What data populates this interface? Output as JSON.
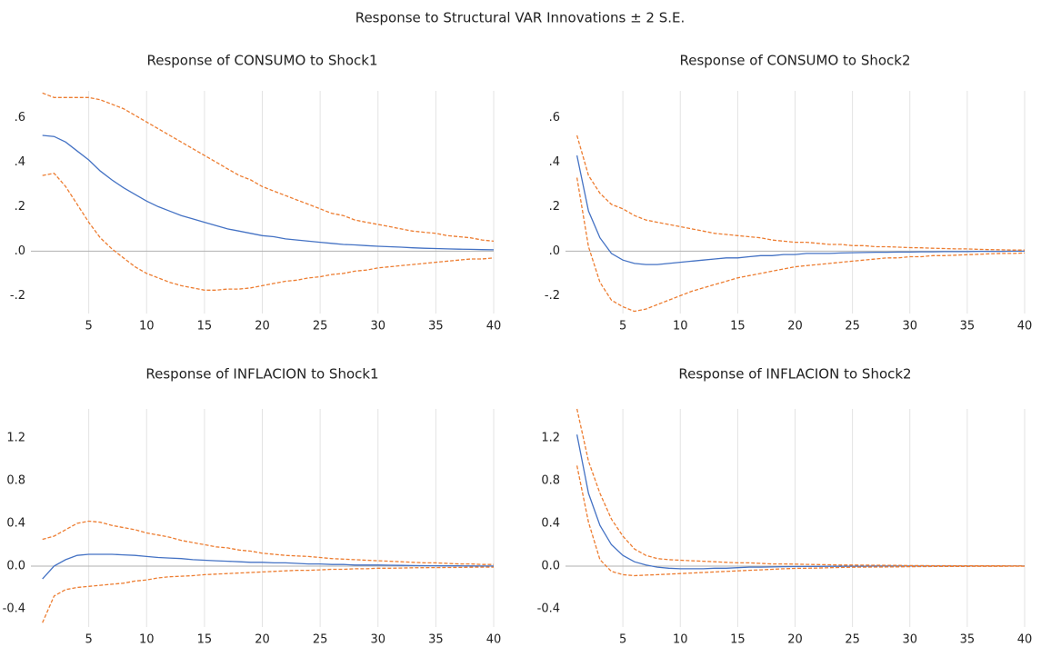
{
  "title": "Response to Structural VAR Innovations ± 2 S.E.",
  "chart_data": [
    {
      "type": "line",
      "title": "Response of CONSUMO to Shock1",
      "x": [
        1,
        2,
        3,
        4,
        5,
        6,
        7,
        8,
        9,
        10,
        11,
        12,
        13,
        14,
        15,
        16,
        17,
        18,
        19,
        20,
        21,
        22,
        23,
        24,
        25,
        26,
        27,
        28,
        29,
        30,
        31,
        32,
        33,
        34,
        35,
        36,
        37,
        38,
        39,
        40
      ],
      "xlim": [
        0,
        40
      ],
      "xticks": [
        5,
        10,
        15,
        20,
        25,
        30,
        35,
        40
      ],
      "ylim": [
        -0.28,
        0.72
      ],
      "yticks": [
        {
          "value": -0.2,
          "label": "-.2"
        },
        {
          "value": 0,
          "label": ".0"
        },
        {
          "value": 0.2,
          "label": ".2"
        },
        {
          "value": 0.4,
          "label": ".4"
        },
        {
          "value": 0.6,
          "label": ".6"
        }
      ],
      "grid": "x",
      "zero_line": true,
      "series": [
        {
          "color": "#4472c4",
          "dash": false,
          "values": [
            0.52,
            0.515,
            0.49,
            0.45,
            0.41,
            0.36,
            0.32,
            0.285,
            0.255,
            0.225,
            0.2,
            0.18,
            0.16,
            0.145,
            0.13,
            0.115,
            0.1,
            0.09,
            0.08,
            0.07,
            0.065,
            0.055,
            0.05,
            0.045,
            0.04,
            0.035,
            0.03,
            0.028,
            0.025,
            0.022,
            0.02,
            0.018,
            0.015,
            0.013,
            0.012,
            0.01,
            0.009,
            0.008,
            0.007,
            0.006
          ]
        },
        {
          "color": "#ed7d31",
          "dash": true,
          "values": [
            0.71,
            0.69,
            0.69,
            0.69,
            0.69,
            0.68,
            0.66,
            0.64,
            0.61,
            0.58,
            0.55,
            0.52,
            0.49,
            0.46,
            0.43,
            0.4,
            0.37,
            0.34,
            0.32,
            0.29,
            0.27,
            0.25,
            0.23,
            0.21,
            0.19,
            0.17,
            0.16,
            0.14,
            0.13,
            0.12,
            0.11,
            0.1,
            0.09,
            0.085,
            0.08,
            0.07,
            0.065,
            0.06,
            0.05,
            0.045
          ]
        },
        {
          "color": "#ed7d31",
          "dash": true,
          "values": [
            0.34,
            0.35,
            0.29,
            0.21,
            0.13,
            0.06,
            0.01,
            -0.03,
            -0.07,
            -0.1,
            -0.12,
            -0.14,
            -0.155,
            -0.165,
            -0.175,
            -0.175,
            -0.17,
            -0.17,
            -0.165,
            -0.155,
            -0.145,
            -0.135,
            -0.13,
            -0.12,
            -0.115,
            -0.105,
            -0.1,
            -0.09,
            -0.085,
            -0.075,
            -0.07,
            -0.065,
            -0.06,
            -0.055,
            -0.05,
            -0.045,
            -0.04,
            -0.035,
            -0.035,
            -0.03
          ]
        }
      ]
    },
    {
      "type": "line",
      "title": "Response of CONSUMO to Shock2",
      "x": [
        1,
        2,
        3,
        4,
        5,
        6,
        7,
        8,
        9,
        10,
        11,
        12,
        13,
        14,
        15,
        16,
        17,
        18,
        19,
        20,
        21,
        22,
        23,
        24,
        25,
        26,
        27,
        28,
        29,
        30,
        31,
        32,
        33,
        34,
        35,
        36,
        37,
        38,
        39,
        40
      ],
      "xlim": [
        0,
        40
      ],
      "xticks": [
        5,
        10,
        15,
        20,
        25,
        30,
        35,
        40
      ],
      "ylim": [
        -0.28,
        0.72
      ],
      "yticks": [
        {
          "value": -0.2,
          "label": "-.2"
        },
        {
          "value": 0,
          "label": ".0"
        },
        {
          "value": 0.2,
          "label": ".2"
        },
        {
          "value": 0.4,
          "label": ".4"
        },
        {
          "value": 0.6,
          "label": ".6"
        }
      ],
      "grid": "x",
      "zero_line": true,
      "series": [
        {
          "color": "#4472c4",
          "dash": false,
          "values": [
            0.43,
            0.18,
            0.06,
            -0.01,
            -0.04,
            -0.055,
            -0.06,
            -0.06,
            -0.055,
            -0.05,
            -0.045,
            -0.04,
            -0.035,
            -0.03,
            -0.03,
            -0.025,
            -0.02,
            -0.02,
            -0.015,
            -0.015,
            -0.01,
            -0.01,
            -0.01,
            -0.008,
            -0.007,
            -0.006,
            -0.005,
            -0.005,
            -0.004,
            -0.004,
            -0.003,
            -0.003,
            -0.002,
            -0.002,
            -0.002,
            -0.001,
            -0.001,
            -0.001,
            0,
            0
          ]
        },
        {
          "color": "#ed7d31",
          "dash": true,
          "values": [
            0.52,
            0.34,
            0.26,
            0.21,
            0.19,
            0.16,
            0.14,
            0.13,
            0.12,
            0.11,
            0.1,
            0.09,
            0.08,
            0.075,
            0.07,
            0.065,
            0.06,
            0.05,
            0.045,
            0.04,
            0.04,
            0.035,
            0.03,
            0.03,
            0.025,
            0.025,
            0.02,
            0.02,
            0.018,
            0.016,
            0.015,
            0.013,
            0.012,
            0.01,
            0.01,
            0.008,
            0.007,
            0.006,
            0.005,
            0.005
          ]
        },
        {
          "color": "#ed7d31",
          "dash": true,
          "values": [
            0.33,
            0.02,
            -0.14,
            -0.22,
            -0.25,
            -0.27,
            -0.26,
            -0.24,
            -0.22,
            -0.2,
            -0.18,
            -0.165,
            -0.15,
            -0.135,
            -0.12,
            -0.11,
            -0.1,
            -0.09,
            -0.08,
            -0.07,
            -0.065,
            -0.06,
            -0.055,
            -0.05,
            -0.045,
            -0.04,
            -0.035,
            -0.03,
            -0.03,
            -0.025,
            -0.025,
            -0.02,
            -0.02,
            -0.018,
            -0.016,
            -0.014,
            -0.012,
            -0.01,
            -0.01,
            -0.008
          ]
        }
      ]
    },
    {
      "type": "line",
      "title": "Response of INFLACION to Shock1",
      "x": [
        1,
        2,
        3,
        4,
        5,
        6,
        7,
        8,
        9,
        10,
        11,
        12,
        13,
        14,
        15,
        16,
        17,
        18,
        19,
        20,
        21,
        22,
        23,
        24,
        25,
        26,
        27,
        28,
        29,
        30,
        31,
        32,
        33,
        34,
        35,
        36,
        37,
        38,
        39,
        40
      ],
      "xlim": [
        0,
        40
      ],
      "xticks": [
        5,
        10,
        15,
        20,
        25,
        30,
        35,
        40
      ],
      "ylim": [
        -0.57,
        1.47
      ],
      "yticks": [
        -0.4,
        {
          "value": 0,
          "label": "0.0"
        },
        0.4,
        0.8,
        1.2
      ],
      "grid": "x",
      "zero_line": true,
      "series": [
        {
          "color": "#4472c4",
          "dash": false,
          "values": [
            -0.12,
            0,
            0.06,
            0.1,
            0.11,
            0.11,
            0.11,
            0.105,
            0.1,
            0.09,
            0.08,
            0.075,
            0.07,
            0.06,
            0.055,
            0.05,
            0.045,
            0.04,
            0.035,
            0.035,
            0.03,
            0.03,
            0.025,
            0.02,
            0.02,
            0.015,
            0.015,
            0.01,
            0.01,
            0.01,
            0.008,
            0.006,
            0.005,
            0.004,
            0.003,
            0.002,
            0.002,
            0.001,
            0,
            0
          ]
        },
        {
          "color": "#ed7d31",
          "dash": true,
          "values": [
            0.25,
            0.28,
            0.34,
            0.4,
            0.42,
            0.41,
            0.38,
            0.36,
            0.34,
            0.31,
            0.29,
            0.27,
            0.24,
            0.22,
            0.2,
            0.18,
            0.17,
            0.15,
            0.14,
            0.12,
            0.11,
            0.1,
            0.095,
            0.09,
            0.08,
            0.07,
            0.065,
            0.06,
            0.055,
            0.05,
            0.045,
            0.04,
            0.035,
            0.03,
            0.03,
            0.025,
            0.02,
            0.02,
            0.015,
            0.015
          ]
        },
        {
          "color": "#ed7d31",
          "dash": true,
          "values": [
            -0.53,
            -0.28,
            -0.22,
            -0.2,
            -0.19,
            -0.18,
            -0.17,
            -0.16,
            -0.14,
            -0.13,
            -0.11,
            -0.1,
            -0.095,
            -0.09,
            -0.08,
            -0.075,
            -0.07,
            -0.065,
            -0.06,
            -0.055,
            -0.05,
            -0.045,
            -0.04,
            -0.04,
            -0.035,
            -0.03,
            -0.03,
            -0.025,
            -0.025,
            -0.02,
            -0.02,
            -0.018,
            -0.016,
            -0.015,
            -0.014,
            -0.013,
            -0.012,
            -0.011,
            -0.01,
            -0.01
          ]
        }
      ]
    },
    {
      "type": "line",
      "title": "Response of INFLACION to Shock2",
      "x": [
        1,
        2,
        3,
        4,
        5,
        6,
        7,
        8,
        9,
        10,
        11,
        12,
        13,
        14,
        15,
        16,
        17,
        18,
        19,
        20,
        21,
        22,
        23,
        24,
        25,
        26,
        27,
        28,
        29,
        30,
        31,
        32,
        33,
        34,
        35,
        36,
        37,
        38,
        39,
        40
      ],
      "xlim": [
        0,
        40
      ],
      "xticks": [
        5,
        10,
        15,
        20,
        25,
        30,
        35,
        40
      ],
      "ylim": [
        -0.57,
        1.47
      ],
      "yticks": [
        -0.4,
        {
          "value": 0,
          "label": "0.0"
        },
        0.4,
        0.8,
        1.2
      ],
      "grid": "x",
      "zero_line": true,
      "series": [
        {
          "color": "#4472c4",
          "dash": false,
          "values": [
            1.23,
            0.68,
            0.38,
            0.2,
            0.1,
            0.04,
            0.01,
            -0.01,
            -0.02,
            -0.025,
            -0.025,
            -0.025,
            -0.02,
            -0.02,
            -0.015,
            -0.01,
            -0.01,
            -0.008,
            -0.006,
            -0.005,
            -0.004,
            -0.003,
            -0.002,
            -0.002,
            -0.001,
            -0.001,
            0,
            0,
            0,
            0,
            0,
            0,
            0,
            0,
            0,
            0,
            0,
            0,
            0,
            0
          ]
        },
        {
          "color": "#ed7d31",
          "dash": true,
          "values": [
            1.47,
            0.98,
            0.68,
            0.44,
            0.28,
            0.16,
            0.1,
            0.07,
            0.06,
            0.055,
            0.05,
            0.045,
            0.04,
            0.035,
            0.03,
            0.03,
            0.025,
            0.02,
            0.02,
            0.018,
            0.016,
            0.014,
            0.012,
            0.01,
            0.01,
            0.009,
            0.008,
            0.007,
            0.006,
            0.005,
            0.005,
            0.004,
            0.004,
            0.003,
            0.003,
            0.002,
            0.002,
            0.002,
            0.001,
            0.001
          ]
        },
        {
          "color": "#ed7d31",
          "dash": true,
          "values": [
            0.94,
            0.41,
            0.06,
            -0.05,
            -0.08,
            -0.09,
            -0.085,
            -0.08,
            -0.075,
            -0.07,
            -0.065,
            -0.06,
            -0.055,
            -0.05,
            -0.045,
            -0.04,
            -0.035,
            -0.03,
            -0.025,
            -0.022,
            -0.02,
            -0.018,
            -0.015,
            -0.013,
            -0.011,
            -0.01,
            -0.009,
            -0.008,
            -0.007,
            -0.006,
            -0.005,
            -0.004,
            -0.004,
            -0.003,
            -0.003,
            -0.002,
            -0.002,
            -0.002,
            -0.001,
            -0.001
          ]
        }
      ]
    }
  ]
}
